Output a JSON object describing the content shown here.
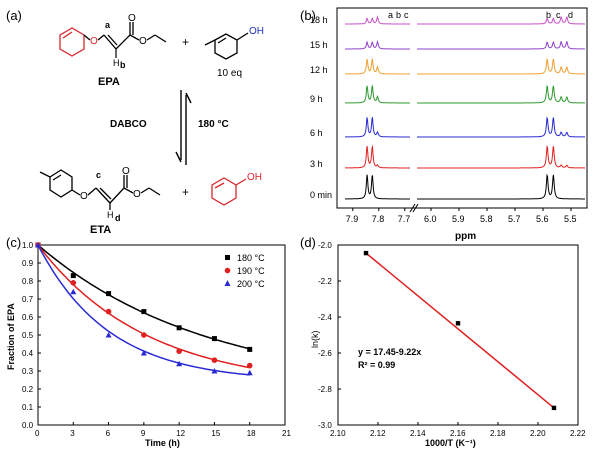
{
  "panels": {
    "a": {
      "letter": "(a)",
      "reaction": {
        "reactant_label": "EPA",
        "reagent_label": "10 eq",
        "plus": "+",
        "conditions_catalyst": "DABCO",
        "conditions_temp": "180 °C",
        "product_label": "ETA",
        "atom_labels": [
          "a",
          "b",
          "c",
          "d"
        ],
        "oh_label": "OH",
        "o_label": "O",
        "colors": {
          "phenoxy": "#d9262b",
          "cresol_oh": "#1f2fbf",
          "black": "#000000"
        }
      }
    },
    "b": {
      "letter": "(b)",
      "times": [
        "18 h",
        "15 h",
        "12 h",
        "9 h",
        "6 h",
        "3 h",
        "0 min"
      ],
      "colors": [
        "#c84fc8",
        "#8e44c9",
        "#f0a030",
        "#2e9a2e",
        "#2a2ad4",
        "#e02020",
        "#000000"
      ],
      "peak_labels_left": [
        "a",
        "b",
        "c"
      ],
      "peak_labels_right": [
        "b",
        "c",
        "d"
      ],
      "xlabel": "ppm",
      "xticks_left": [
        "7.9",
        "7.8",
        "7.7"
      ],
      "xticks_right": [
        "6.0",
        "5.9",
        "5.8",
        "5.7",
        "5.6",
        "5.5"
      ]
    }
  },
  "chart_data": [
    {
      "panel": "(c)",
      "type": "scatter",
      "xlabel": "Time (h)",
      "ylabel": "Fraction of EPA",
      "xlim": [
        0,
        21
      ],
      "ylim": [
        0,
        1.0
      ],
      "xticks": [
        0,
        3,
        6,
        9,
        12,
        15,
        18,
        21
      ],
      "yticks": [
        0.0,
        0.1,
        0.2,
        0.3,
        0.4,
        0.5,
        0.6,
        0.7,
        0.8,
        0.9,
        1.0
      ],
      "legend_position": "top-right",
      "series": [
        {
          "name": "180 °C",
          "marker": "square",
          "color": "#000000",
          "x": [
            0,
            3,
            6,
            9,
            12,
            15,
            18
          ],
          "y": [
            1.0,
            0.83,
            0.73,
            0.63,
            0.54,
            0.48,
            0.42
          ]
        },
        {
          "name": "190 °C",
          "marker": "circle",
          "color": "#e02020",
          "x": [
            0,
            3,
            6,
            9,
            12,
            15,
            18
          ],
          "y": [
            1.0,
            0.79,
            0.63,
            0.5,
            0.41,
            0.36,
            0.33
          ]
        },
        {
          "name": "200 °C",
          "marker": "triangle",
          "color": "#2a2ad4",
          "x": [
            0,
            3,
            6,
            9,
            12,
            15,
            18
          ],
          "y": [
            1.0,
            0.74,
            0.5,
            0.4,
            0.34,
            0.3,
            0.29
          ]
        }
      ]
    },
    {
      "panel": "(d)",
      "type": "scatter",
      "xlabel": "1000/T (K⁻¹)",
      "ylabel": "ln(k)",
      "xlim": [
        2.1,
        2.22
      ],
      "ylim": [
        -3.0,
        -2.0
      ],
      "xticks": [
        "2.10",
        "2.12",
        "2.14",
        "2.16",
        "2.18",
        "2.20",
        "2.22"
      ],
      "yticks": [
        "-3.0",
        "-2.8",
        "-2.6",
        "-2.4",
        "-2.2",
        "-2.0"
      ],
      "fit_color": "#e02020",
      "points": {
        "x": [
          2.114,
          2.16,
          2.208
        ],
        "y": [
          -2.045,
          -2.435,
          -2.905
        ]
      },
      "annotations": [
        "y = 17.45-9.22x",
        "R² = 0.99"
      ]
    }
  ]
}
